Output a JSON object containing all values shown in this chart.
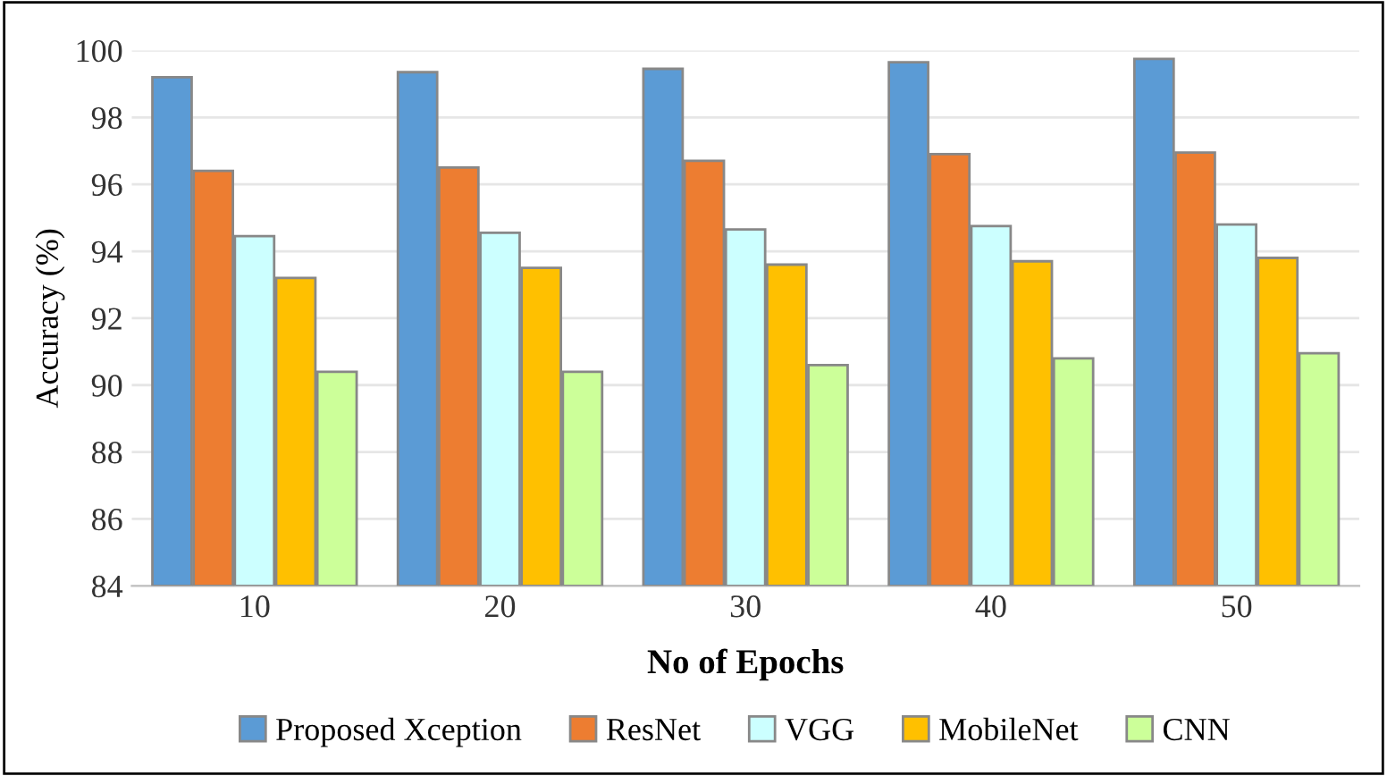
{
  "chart_data": {
    "type": "bar",
    "xlabel": "No of Epochs",
    "ylabel": "Accuracy (%)",
    "categories": [
      "10",
      "20",
      "30",
      "40",
      "50"
    ],
    "series": [
      {
        "name": "Proposed Xception",
        "color": "#5b9bd5",
        "values": [
          99.2,
          99.35,
          99.45,
          99.65,
          99.75
        ]
      },
      {
        "name": "ResNet",
        "color": "#ed7d31",
        "values": [
          96.4,
          96.5,
          96.7,
          96.9,
          96.95
        ]
      },
      {
        "name": "VGG",
        "color": "#ccffff",
        "values": [
          94.45,
          94.55,
          94.65,
          94.75,
          94.8
        ]
      },
      {
        "name": "MobileNet",
        "color": "#ffc000",
        "values": [
          93.2,
          93.5,
          93.6,
          93.7,
          93.8
        ]
      },
      {
        "name": "CNN",
        "color": "#ccff99",
        "values": [
          90.4,
          90.4,
          90.6,
          90.8,
          90.95
        ]
      }
    ],
    "ylim": [
      84,
      100
    ],
    "yticks": [
      84,
      86,
      88,
      90,
      92,
      94,
      96,
      98,
      100
    ],
    "grid": "y",
    "legend": "bottom"
  }
}
